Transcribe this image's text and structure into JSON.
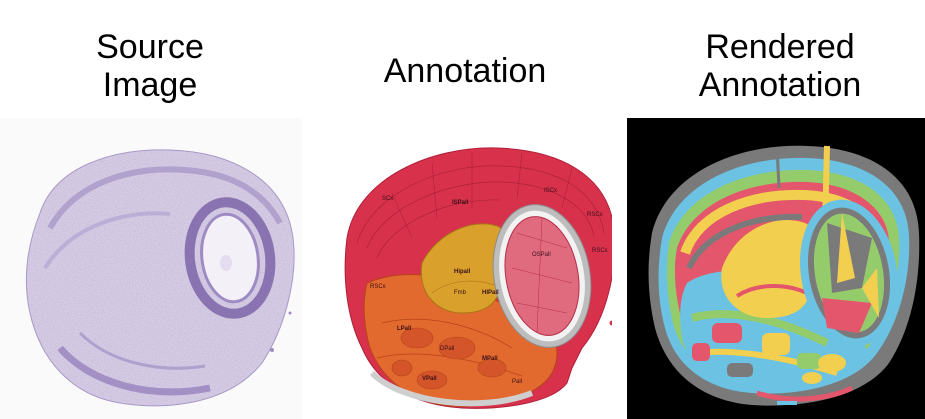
{
  "panels": {
    "source": {
      "title_line1": "Source",
      "title_line2": "Image"
    },
    "annotation": {
      "title": "Annotation"
    },
    "rendered": {
      "title_line1": "Rendered",
      "title_line2": "Annotation"
    }
  },
  "colors": {
    "nissl": "#b6a5cf",
    "nissl_dark": "#7c64a8",
    "cortex": "#d8314c",
    "thalamus": "#e36a2f",
    "hippocampus": "#d9a12b",
    "rendered_bg": "#000000",
    "rendered_palette": [
      "#f2cf4f",
      "#6bc2e3",
      "#95cc6b",
      "#e4566b",
      "#7a7a7a"
    ]
  },
  "annotation_labels": {
    "l1": "SCx",
    "l2": "ISPall",
    "l3": "ISCx",
    "l4": "RSCx",
    "l5": "Hipall",
    "l6": "OSPall",
    "l7": "Fmb",
    "l8": "HIPall",
    "l9": "RSCx",
    "l10": "RSCx",
    "l11": "LPall",
    "l12": "DPall",
    "l13": "VPall",
    "l14": "MPall",
    "l15": "Pall"
  }
}
